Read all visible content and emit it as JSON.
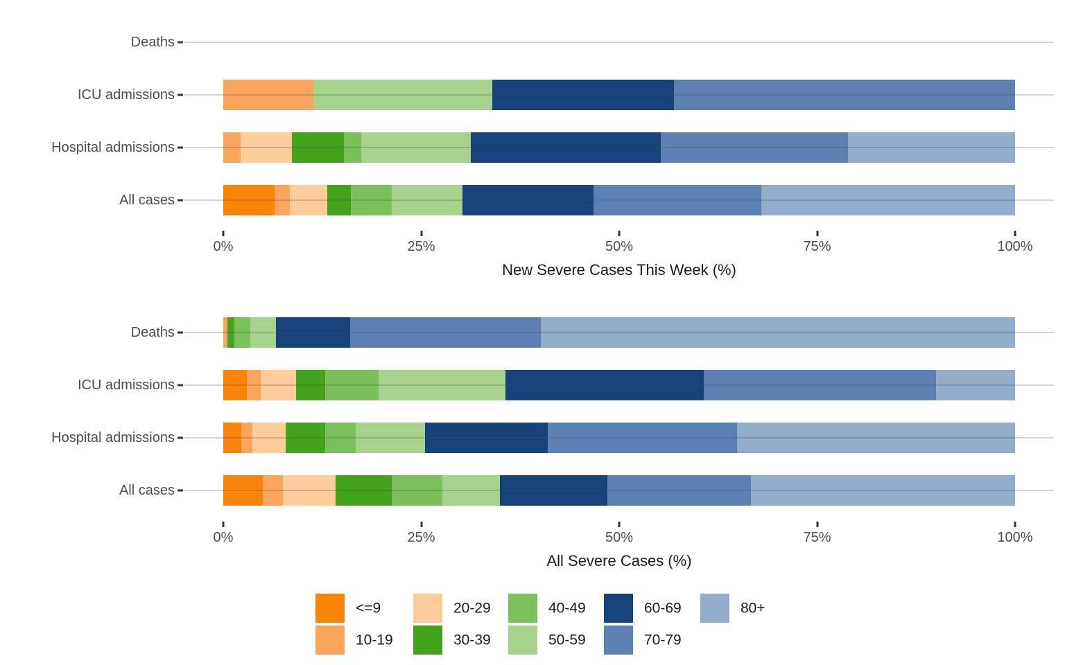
{
  "palette": {
    "<=9": "#F98408",
    "10-19": "#FBA45C",
    "20-29": "#FCCC9B",
    "30-39": "#43A31C",
    "40-49": "#7BC05A",
    "50-59": "#A6D28B",
    "60-69": "#17437D",
    "70-79": "#5B80B1",
    "80+": "#93ACCA"
  },
  "style_colors": {
    "axis_text": "#4d4d4d",
    "title_text": "#1a1a1a",
    "tick_mark": "#333333",
    "background": "#ffffff"
  },
  "chart_data": [
    {
      "type": "bar",
      "orientation": "horizontal",
      "stacked": true,
      "units": "percent",
      "xlabel": "New Severe Cases This Week (%)",
      "xlim": [
        0,
        100
      ],
      "x_ticks": [
        "0%",
        "25%",
        "50%",
        "75%",
        "100%"
      ],
      "x_tick_values": [
        0,
        25,
        50,
        75,
        100
      ],
      "categories": [
        "Deaths",
        "ICU admissions",
        "Hospital admissions",
        "All cases"
      ],
      "rows": [
        {
          "category": "Deaths",
          "segments": []
        },
        {
          "category": "ICU admissions",
          "segments": [
            {
              "group": "10-19",
              "value": 11.4
            },
            {
              "group": "50-59",
              "value": 22.6
            },
            {
              "group": "60-69",
              "value": 22.9
            },
            {
              "group": "70-79",
              "value": 43.1
            }
          ]
        },
        {
          "category": "Hospital admissions",
          "segments": [
            {
              "group": "10-19",
              "value": 2.2
            },
            {
              "group": "20-29",
              "value": 6.5
            },
            {
              "group": "30-39",
              "value": 6.5
            },
            {
              "group": "40-49",
              "value": 2.2
            },
            {
              "group": "50-59",
              "value": 13.9
            },
            {
              "group": "60-69",
              "value": 24.0
            },
            {
              "group": "70-79",
              "value": 23.6
            },
            {
              "group": "80+",
              "value": 21.1
            }
          ]
        },
        {
          "category": "All cases",
          "segments": [
            {
              "group": "<=9",
              "value": 6.5
            },
            {
              "group": "10-19",
              "value": 1.9
            },
            {
              "group": "20-29",
              "value": 4.7
            },
            {
              "group": "30-39",
              "value": 3.0
            },
            {
              "group": "40-49",
              "value": 5.2
            },
            {
              "group": "50-59",
              "value": 8.9
            },
            {
              "group": "60-69",
              "value": 16.6
            },
            {
              "group": "70-79",
              "value": 21.2
            },
            {
              "group": "80+",
              "value": 32.0
            }
          ]
        }
      ]
    },
    {
      "type": "bar",
      "orientation": "horizontal",
      "stacked": true,
      "units": "percent",
      "xlabel": "All Severe Cases (%)",
      "xlim": [
        0,
        100
      ],
      "x_ticks": [
        "0%",
        "25%",
        "50%",
        "75%",
        "100%"
      ],
      "x_tick_values": [
        0,
        25,
        50,
        75,
        100
      ],
      "categories": [
        "Deaths",
        "ICU admissions",
        "Hospital admissions",
        "All cases"
      ],
      "rows": [
        {
          "category": "Deaths",
          "segments": [
            {
              "group": "10-19",
              "value": 0.5
            },
            {
              "group": "30-39",
              "value": 0.9
            },
            {
              "group": "40-49",
              "value": 2.0
            },
            {
              "group": "50-59",
              "value": 3.3
            },
            {
              "group": "60-69",
              "value": 9.3
            },
            {
              "group": "70-79",
              "value": 24.1
            },
            {
              "group": "80+",
              "value": 59.9
            }
          ]
        },
        {
          "category": "ICU admissions",
          "segments": [
            {
              "group": "<=9",
              "value": 3.0
            },
            {
              "group": "10-19",
              "value": 1.7
            },
            {
              "group": "20-29",
              "value": 4.5
            },
            {
              "group": "30-39",
              "value": 3.7
            },
            {
              "group": "40-49",
              "value": 6.7
            },
            {
              "group": "50-59",
              "value": 16.0
            },
            {
              "group": "60-69",
              "value": 25.1
            },
            {
              "group": "70-79",
              "value": 29.3
            },
            {
              "group": "80+",
              "value": 10.0
            }
          ]
        },
        {
          "category": "Hospital admissions",
          "segments": [
            {
              "group": "<=9",
              "value": 2.3
            },
            {
              "group": "10-19",
              "value": 1.4
            },
            {
              "group": "20-29",
              "value": 4.2
            },
            {
              "group": "30-39",
              "value": 5.0
            },
            {
              "group": "40-49",
              "value": 3.8
            },
            {
              "group": "50-59",
              "value": 8.8
            },
            {
              "group": "60-69",
              "value": 15.5
            },
            {
              "group": "70-79",
              "value": 23.9
            },
            {
              "group": "80+",
              "value": 35.1
            }
          ]
        },
        {
          "category": "All cases",
          "segments": [
            {
              "group": "<=9",
              "value": 5.0
            },
            {
              "group": "10-19",
              "value": 2.5
            },
            {
              "group": "20-29",
              "value": 6.7
            },
            {
              "group": "30-39",
              "value": 7.1
            },
            {
              "group": "40-49",
              "value": 6.4
            },
            {
              "group": "50-59",
              "value": 7.2
            },
            {
              "group": "60-69",
              "value": 13.6
            },
            {
              "group": "70-79",
              "value": 18.1
            },
            {
              "group": "80+",
              "value": 33.4
            }
          ]
        }
      ]
    }
  ],
  "legend": {
    "position": "bottom",
    "columns": [
      [
        "<=9",
        "10-19"
      ],
      [
        "20-29",
        "30-39"
      ],
      [
        "40-49",
        "50-59"
      ],
      [
        "60-69",
        "70-79"
      ],
      [
        "80+"
      ]
    ]
  }
}
